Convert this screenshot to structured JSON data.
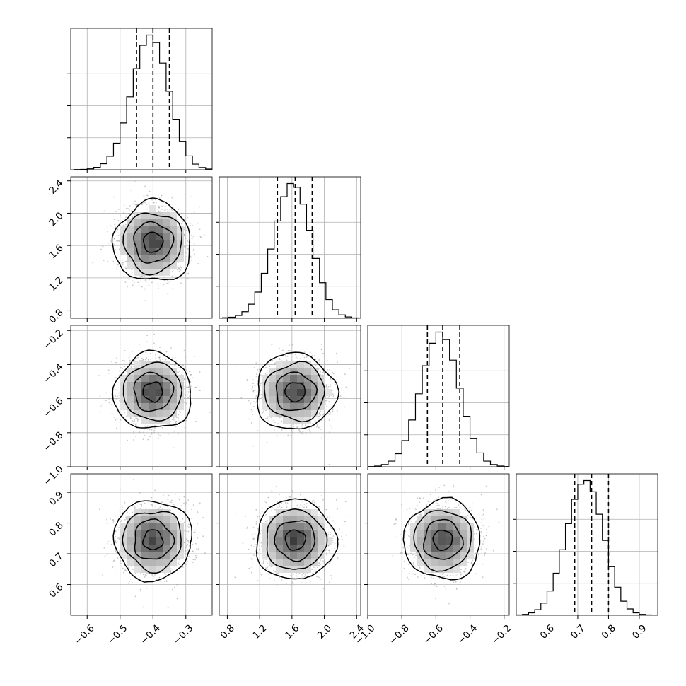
{
  "chart_data": {
    "type": "corner",
    "parameters": [
      {
        "range": [
          -0.65,
          -0.22
        ],
        "ticks": [
          -0.6,
          -0.5,
          -0.4,
          -0.3
        ],
        "tick_labels": [
          "−0.6",
          "−0.5",
          "−0.4",
          "−0.3"
        ],
        "quantiles": [
          -0.45,
          -0.4,
          -0.35
        ],
        "median": -0.4,
        "sigma": 0.05,
        "hist_bins": {
          "x": [
            -0.63,
            -0.61,
            -0.59,
            -0.57,
            -0.55,
            -0.53,
            -0.51,
            -0.49,
            -0.47,
            -0.45,
            -0.43,
            -0.41,
            -0.39,
            -0.37,
            -0.35,
            -0.33,
            -0.31,
            -0.29,
            -0.27,
            -0.25,
            -0.23
          ],
          "counts": [
            1,
            2,
            5,
            13,
            32,
            72,
            142,
            250,
            390,
            540,
            665,
            720,
            680,
            570,
            420,
            270,
            150,
            74,
            30,
            12,
            4
          ]
        }
      },
      {
        "range": [
          0.7,
          2.45
        ],
        "ticks": [
          0.8,
          1.2,
          1.6,
          2.0,
          2.4
        ],
        "tick_labels": [
          "0.8",
          "1.2",
          "1.6",
          "2.0",
          "2.4"
        ],
        "quantiles": [
          1.42,
          1.64,
          1.85
        ],
        "median": 1.64,
        "sigma": 0.21,
        "hist_bins": {
          "x": [
            0.78,
            0.86,
            0.94,
            1.02,
            1.1,
            1.18,
            1.26,
            1.34,
            1.42,
            1.5,
            1.58,
            1.66,
            1.74,
            1.82,
            1.9,
            1.98,
            2.06,
            2.14,
            2.22,
            2.3,
            2.38
          ],
          "counts": [
            3,
            6,
            15,
            35,
            75,
            140,
            240,
            370,
            520,
            650,
            720,
            700,
            610,
            470,
            320,
            190,
            100,
            45,
            18,
            7,
            2
          ]
        }
      },
      {
        "range": [
          -1.0,
          -0.17
        ],
        "ticks": [
          -1.0,
          -0.8,
          -0.6,
          -0.4,
          -0.2
        ],
        "tick_labels": [
          "−1.0",
          "−0.8",
          "−0.6",
          "−0.4",
          "−0.2"
        ],
        "quantiles": [
          -0.65,
          -0.56,
          -0.46
        ],
        "median": -0.56,
        "sigma": 0.095,
        "hist_bins": {
          "x": [
            -0.98,
            -0.94,
            -0.9,
            -0.86,
            -0.82,
            -0.78,
            -0.74,
            -0.7,
            -0.66,
            -0.62,
            -0.58,
            -0.54,
            -0.5,
            -0.46,
            -0.42,
            -0.38,
            -0.34,
            -0.3,
            -0.26,
            -0.22,
            -0.18
          ],
          "counts": [
            1,
            4,
            12,
            30,
            70,
            140,
            250,
            390,
            540,
            660,
            720,
            680,
            570,
            420,
            270,
            150,
            74,
            30,
            12,
            4,
            1
          ]
        }
      },
      {
        "range": [
          0.5,
          0.96
        ],
        "ticks": [
          0.6,
          0.7,
          0.8,
          0.9
        ],
        "tick_labels": [
          "0.6",
          "0.7",
          "0.8",
          "0.9"
        ],
        "quantiles": [
          0.69,
          0.745,
          0.8
        ],
        "median": 0.745,
        "sigma": 0.055,
        "hist_bins": {
          "x": [
            0.51,
            0.53,
            0.55,
            0.57,
            0.59,
            0.61,
            0.63,
            0.65,
            0.67,
            0.69,
            0.71,
            0.73,
            0.75,
            0.77,
            0.79,
            0.81,
            0.83,
            0.85,
            0.87,
            0.89,
            0.91,
            0.93,
            0.95
          ],
          "counts": [
            2,
            5,
            13,
            30,
            65,
            130,
            225,
            350,
            490,
            620,
            700,
            720,
            660,
            540,
            400,
            260,
            150,
            75,
            34,
            13,
            5,
            2,
            1
          ]
        }
      }
    ],
    "contour_levels_sigma": [
      0.5,
      1.0,
      1.5,
      2.0
    ],
    "grid": true,
    "legend": "none"
  }
}
